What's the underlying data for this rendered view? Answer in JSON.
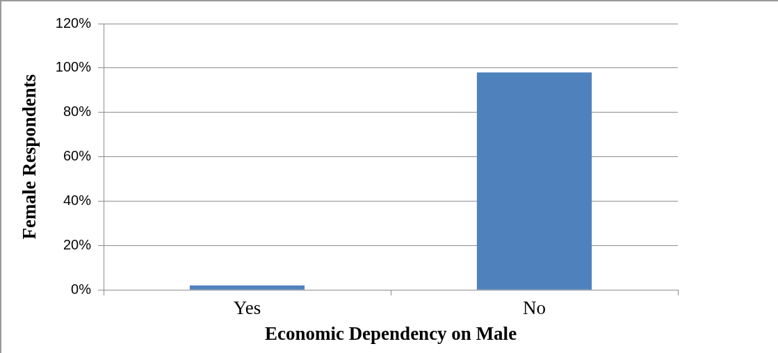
{
  "chart_data": {
    "type": "bar",
    "xlabel": "Economic Dependency on Male",
    "ylabel": "Female Respondents",
    "categories": [
      "Yes",
      "No"
    ],
    "values": [
      2,
      98
    ],
    "color": "#4f81bd",
    "ylim": [
      0,
      120
    ],
    "yticks": [
      {
        "value": 0,
        "label": "0%"
      },
      {
        "value": 20,
        "label": "20%"
      },
      {
        "value": 40,
        "label": "40%"
      },
      {
        "value": 60,
        "label": "60%"
      },
      {
        "value": 80,
        "label": "80%"
      },
      {
        "value": 100,
        "label": "100%"
      },
      {
        "value": 120,
        "label": "120%"
      }
    ],
    "grid": "y",
    "legend": false
  }
}
